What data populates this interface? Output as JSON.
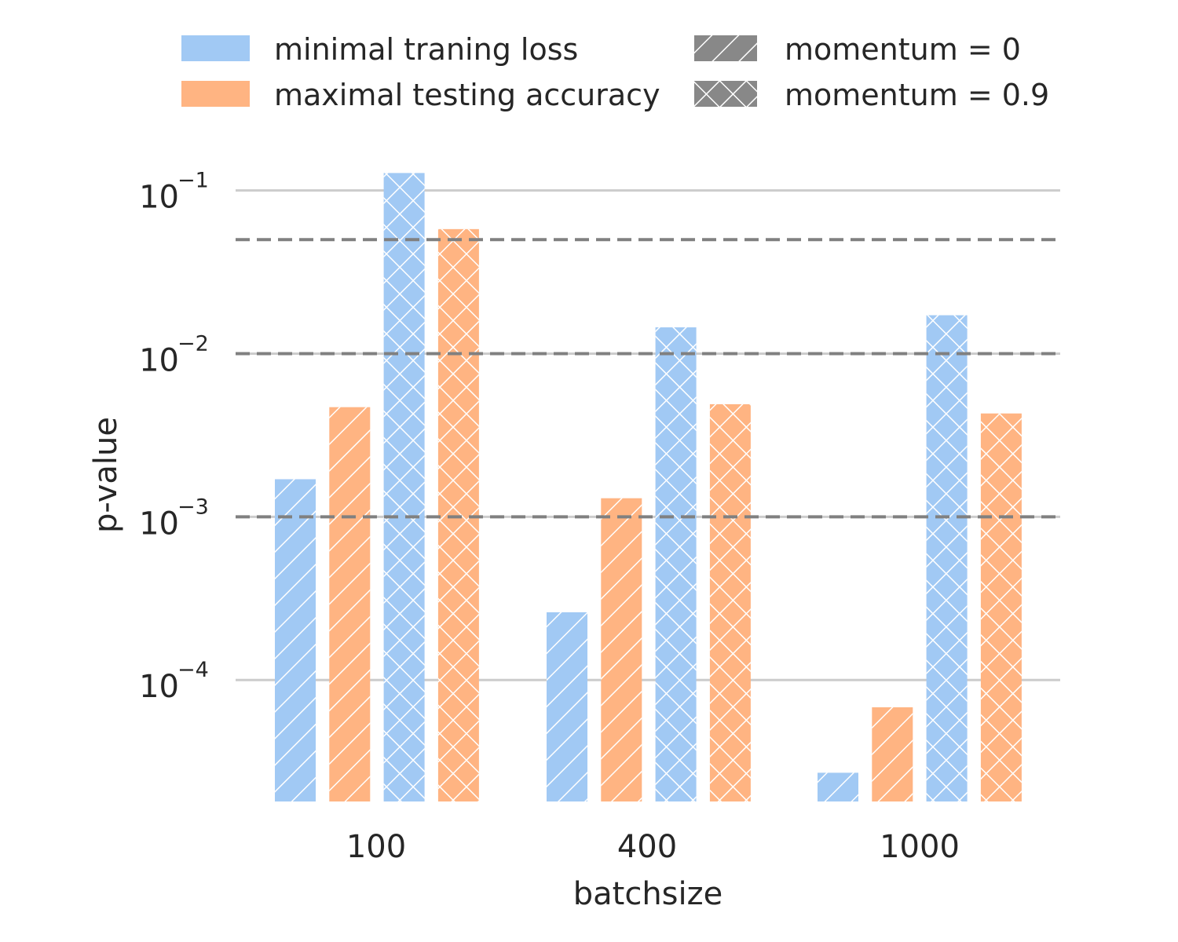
{
  "chart_data": {
    "type": "bar",
    "title": "",
    "xlabel": "batchsize",
    "ylabel": "p-value",
    "yscale": "log",
    "ylim": [
      1.8e-05,
      0.13
    ],
    "grid": "y",
    "legend_position": "top",
    "categories": [
      "100",
      "400",
      "1000"
    ],
    "y_ticks": [
      {
        "value": 0.0001,
        "base": "10",
        "exp": "−4"
      },
      {
        "value": 0.001,
        "base": "10",
        "exp": "−3"
      },
      {
        "value": 0.01,
        "base": "10",
        "exp": "−2"
      },
      {
        "value": 0.1,
        "base": "10",
        "exp": "−1"
      }
    ],
    "reference_lines": [
      0.001,
      0.01,
      0.05
    ],
    "series": [
      {
        "name": "minimal traning loss",
        "momentum": "momentum = 0",
        "color": "#a1c9f4",
        "hatch": "diagonal",
        "values": [
          0.0017,
          0.00026,
          2.7e-05
        ]
      },
      {
        "name": "maximal testing accuracy",
        "momentum": "momentum = 0",
        "color": "#ffb482",
        "hatch": "diagonal",
        "values": [
          0.0047,
          0.0013,
          6.8e-05
        ]
      },
      {
        "name": "minimal traning loss",
        "momentum": "momentum = 0.9",
        "color": "#a1c9f4",
        "hatch": "cross",
        "values": [
          0.128,
          0.0145,
          0.0172
        ]
      },
      {
        "name": "maximal testing accuracy",
        "momentum": "momentum = 0.9",
        "color": "#ffb482",
        "hatch": "cross",
        "values": [
          0.058,
          0.0049,
          0.0043
        ]
      }
    ],
    "legend": {
      "colors": [
        {
          "label": "minimal traning loss",
          "color": "#a1c9f4"
        },
        {
          "label": "maximal testing accuracy",
          "color": "#ffb482"
        }
      ],
      "hatches": [
        {
          "label": "momentum = 0",
          "hatch": "diagonal",
          "color": "#888888"
        },
        {
          "label": "momentum = 0.9",
          "hatch": "cross",
          "color": "#888888"
        }
      ]
    }
  }
}
